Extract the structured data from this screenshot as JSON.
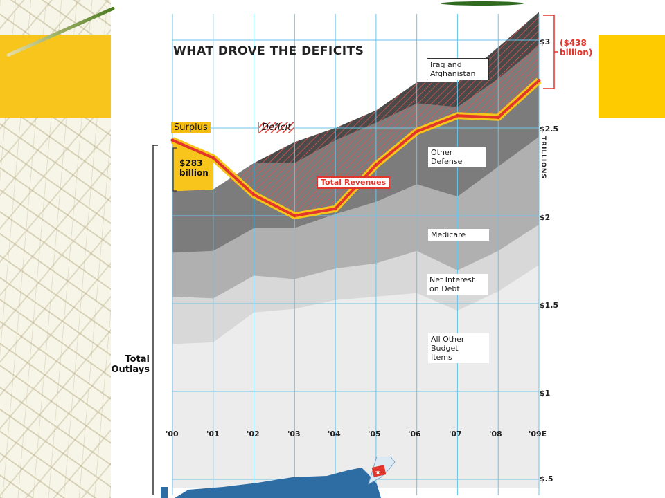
{
  "colors": {
    "accent_yellow": "#f8c51c",
    "revenue_line": "#e2352b",
    "revenue_glow": "#f6c41a",
    "grid": "#6cc3e8",
    "deficit_hatch": "#e1544e"
  },
  "decor": {
    "side_pattern": "tan-floral-pattern",
    "stalk_icon": "plant-stalk-icon",
    "map_icon": "us-map-icon",
    "flag_icon": "star-flag-icon"
  },
  "chart_data": {
    "type": "area",
    "title": "WHAT DROVE THE DEFICITS",
    "x": [
      "'00",
      "'01",
      "'02",
      "'03",
      "'04",
      "'05",
      "'06",
      "'07",
      "'08",
      "'09E"
    ],
    "y_unit": "TRILLIONS",
    "y_ticks": [
      "$3",
      "$2.5",
      "$2",
      "$1.5",
      "$1",
      "$.5"
    ],
    "y_tick_values": [
      3,
      2.5,
      2,
      1.5,
      1,
      0.5
    ],
    "ylim": [
      0.45,
      3.2
    ],
    "grid": true,
    "series": [
      {
        "name": "All Other Budget Items",
        "color": "#ececec",
        "values": [
          1.27,
          1.28,
          1.45,
          1.47,
          1.52,
          1.54,
          1.56,
          1.46,
          1.57,
          1.72
        ]
      },
      {
        "name": "Net Interest on Debt",
        "color": "#d8d8d8",
        "values": [
          1.54,
          1.53,
          1.66,
          1.64,
          1.7,
          1.73,
          1.8,
          1.69,
          1.8,
          1.95
        ]
      },
      {
        "name": "Medicare",
        "color": "#b0b0b0",
        "values": [
          1.79,
          1.8,
          1.93,
          1.93,
          2.01,
          2.08,
          2.18,
          2.11,
          2.28,
          2.45
        ]
      },
      {
        "name": "Other Defense",
        "color": "#7c7c7c",
        "values": [
          2.14,
          2.15,
          2.3,
          2.3,
          2.43,
          2.53,
          2.64,
          2.62,
          2.78,
          2.97
        ]
      },
      {
        "name": "Iraq and Afghanistan",
        "color": "#4a4a4a",
        "values": [
          2.14,
          2.15,
          2.3,
          2.42,
          2.5,
          2.6,
          2.76,
          2.76,
          2.96,
          3.16
        ]
      }
    ],
    "revenue": {
      "name": "Total Revenues",
      "values": [
        2.43,
        2.33,
        2.12,
        2.0,
        2.04,
        2.29,
        2.48,
        2.57,
        2.56,
        2.77
      ]
    },
    "labels": {
      "surplus": "Surplus",
      "deficit": "Deficit",
      "surplus_amount_1": "$283",
      "surplus_amount_2": "billion",
      "deficit_amount_1": "($438",
      "deficit_amount_2": "billion)",
      "total_outlays_1": "Total",
      "total_outlays_2": "Outlays",
      "iraq_1": "Iraq and",
      "iraq_2": "Afghanistan",
      "defense_1": "Other",
      "defense_2": "Defense",
      "medicare": "Medicare",
      "interest_1": "Net Interest",
      "interest_2": "on Debt",
      "other_1": "All Other",
      "other_2": "Budget",
      "other_3": "Items"
    }
  }
}
